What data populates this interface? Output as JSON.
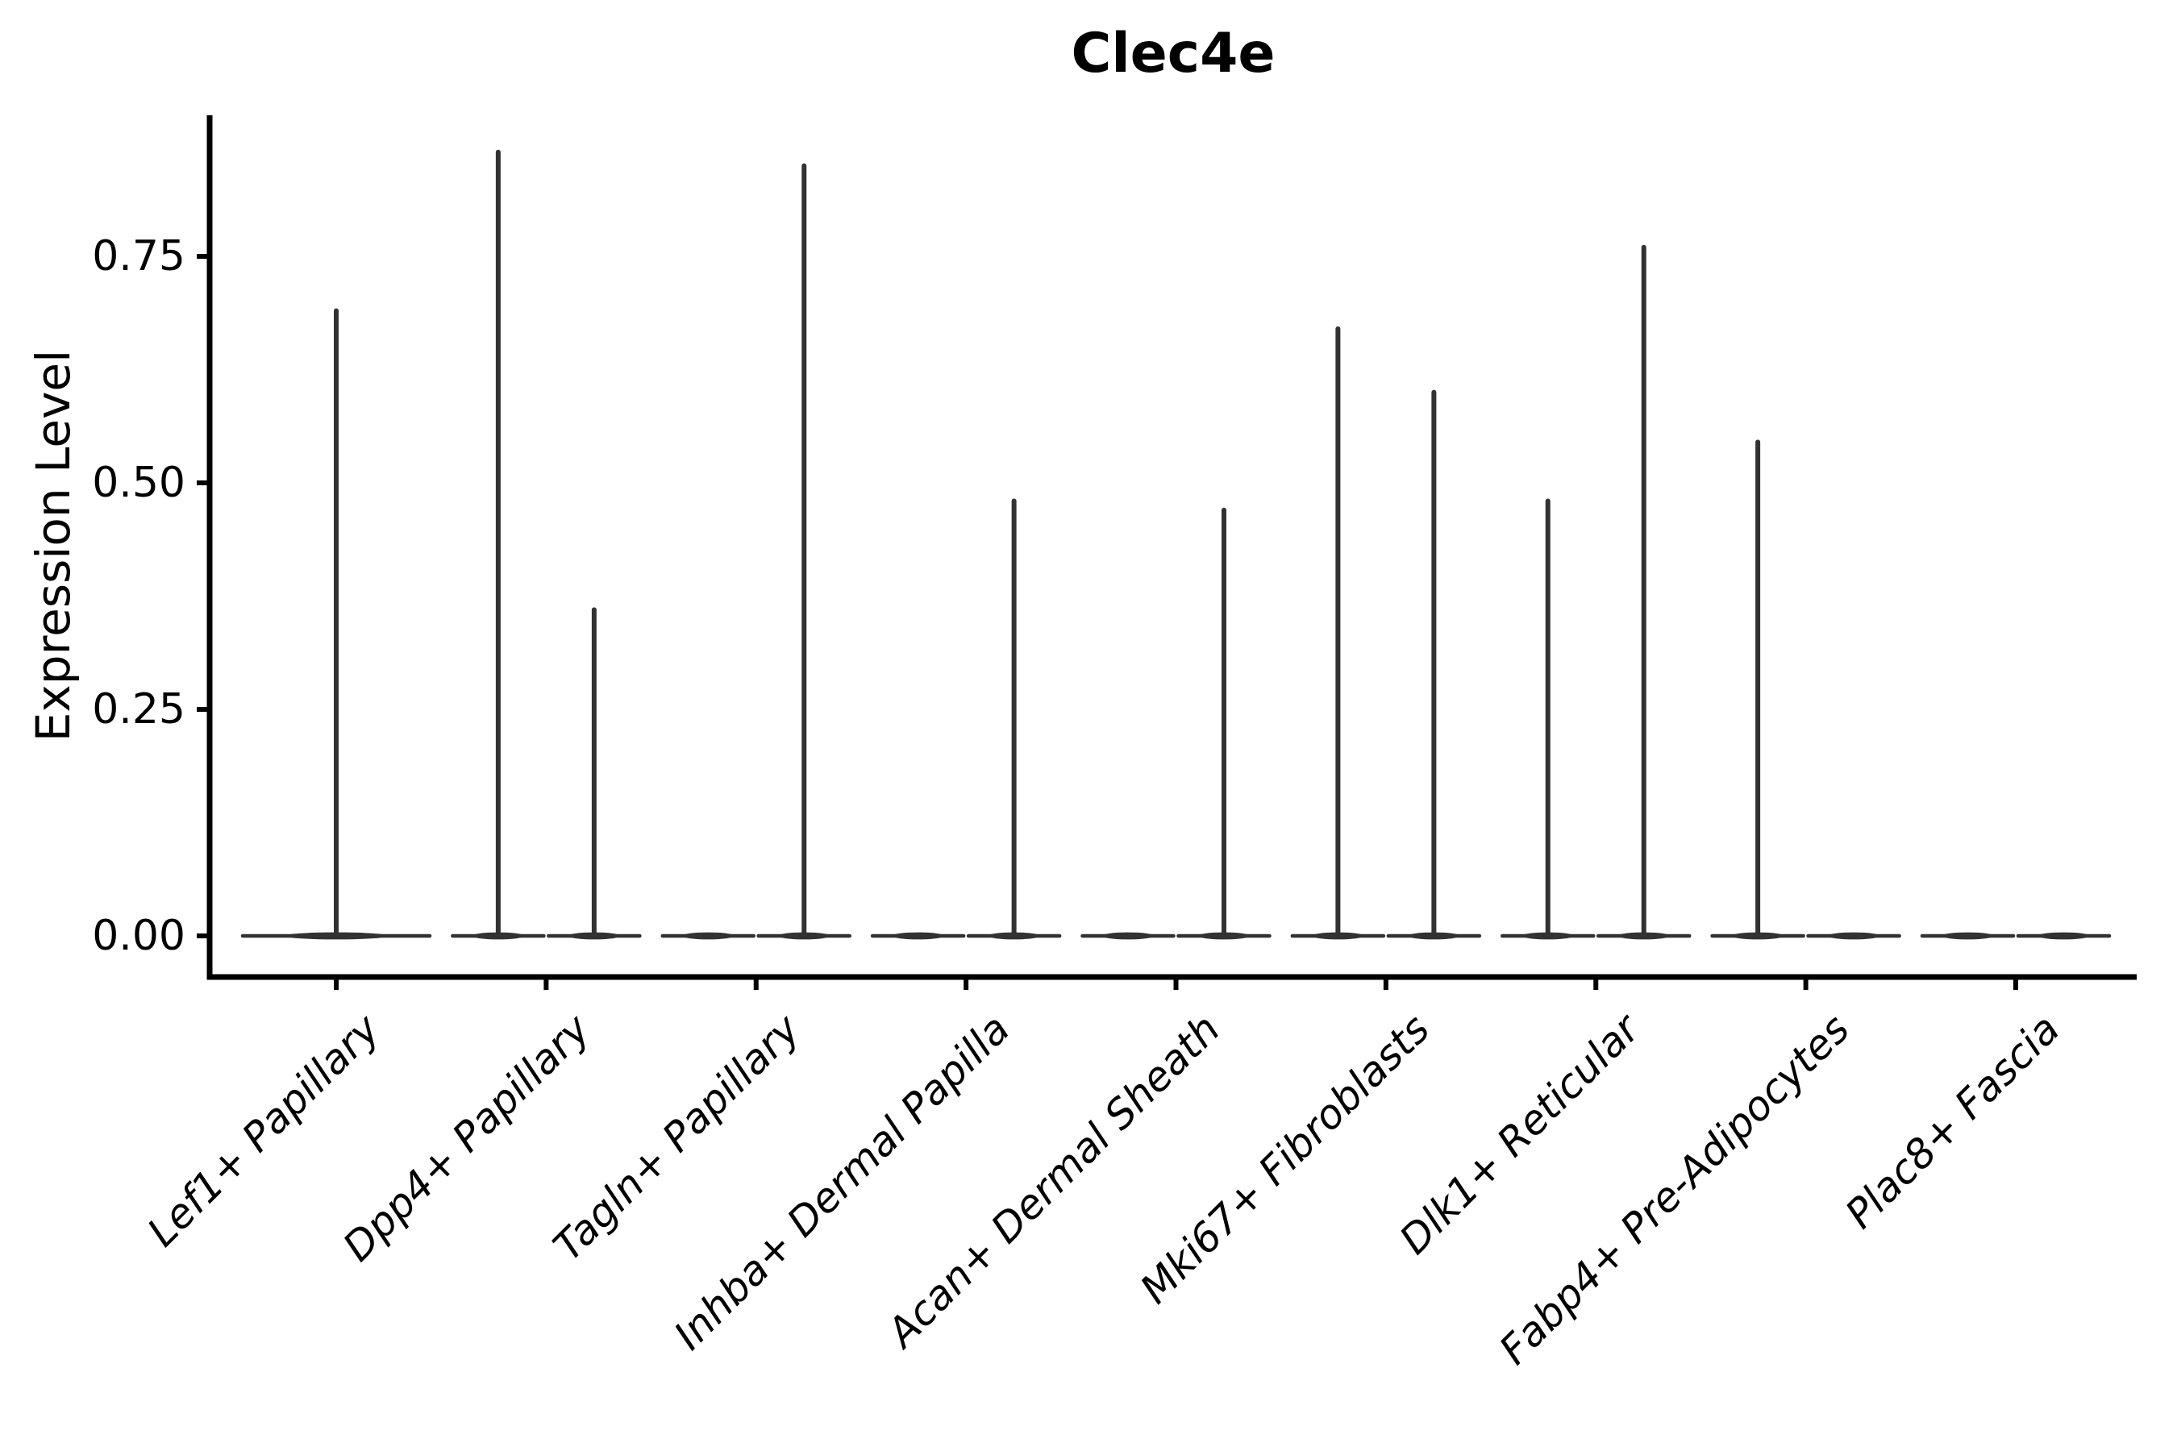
{
  "chart": {
    "title": "Clec4e",
    "y_axis_title": "Expression Level"
  },
  "chart_data": {
    "type": "violin",
    "title": "Clec4e",
    "ylabel": "Expression Level",
    "xlabel": "",
    "grid": false,
    "legend_position": "none",
    "ylim": [
      -0.045,
      0.906
    ],
    "y_ticks": [
      {
        "value": 0.0,
        "label": "0.00"
      },
      {
        "value": 0.25,
        "label": "0.25"
      },
      {
        "value": 0.5,
        "label": "0.50"
      },
      {
        "value": 0.75,
        "label": "0.75"
      }
    ],
    "categories": [
      "Lef1+ Papillary",
      "Dpp4+ Papillary",
      "Tagln+ Papillary",
      "Inhba+ Dermal Papilla",
      "Acan+ Dermal Sheath",
      "Mki67+ Fibroblasts",
      "Dlk1+ Reticular",
      "Fabp4+ Pre-Adipocytes",
      "Plac8+ Fascia"
    ],
    "groups": [
      {
        "category": "Lef1+ Papillary",
        "violins": [
          {
            "slot": "full",
            "max_expression": 0.69
          }
        ]
      },
      {
        "category": "Dpp4+ Papillary",
        "violins": [
          {
            "slot": "left",
            "max_expression": 0.865
          },
          {
            "slot": "right",
            "max_expression": 0.36
          }
        ]
      },
      {
        "category": "Tagln+ Papillary",
        "violins": [
          {
            "slot": "left",
            "max_expression": 0
          },
          {
            "slot": "right",
            "max_expression": 0.85
          }
        ]
      },
      {
        "category": "Inhba+ Dermal Papilla",
        "violins": [
          {
            "slot": "left",
            "max_expression": 0
          },
          {
            "slot": "right",
            "max_expression": 0.48
          }
        ]
      },
      {
        "category": "Acan+ Dermal Sheath",
        "violins": [
          {
            "slot": "left",
            "max_expression": 0
          },
          {
            "slot": "right",
            "max_expression": 0.47
          }
        ]
      },
      {
        "category": "Mki67+ Fibroblasts",
        "violins": [
          {
            "slot": "left",
            "max_expression": 0.67
          },
          {
            "slot": "right",
            "max_expression": 0.6
          }
        ]
      },
      {
        "category": "Dlk1+ Reticular",
        "violins": [
          {
            "slot": "left",
            "max_expression": 0.48
          },
          {
            "slot": "right",
            "max_expression": 0.76
          }
        ]
      },
      {
        "category": "Fabp4+ Pre-Adipocytes",
        "violins": [
          {
            "slot": "left",
            "max_expression": 0.545
          },
          {
            "slot": "right",
            "max_expression": 0
          }
        ]
      },
      {
        "category": "Plac8+ Fascia",
        "violins": [
          {
            "slot": "left",
            "max_expression": 0
          },
          {
            "slot": "right",
            "max_expression": 0
          }
        ]
      }
    ],
    "violin_color": "#323232",
    "axis_color": "#000000"
  }
}
